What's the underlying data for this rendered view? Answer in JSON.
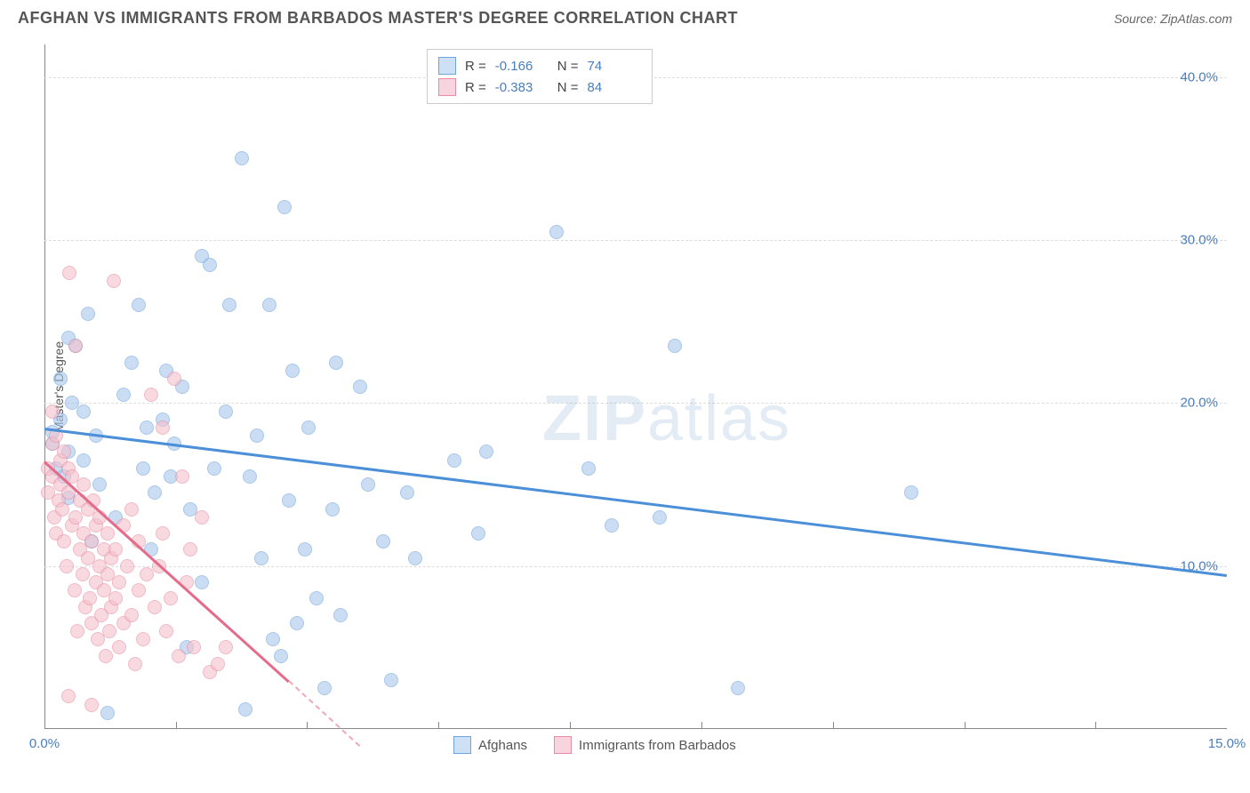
{
  "header": {
    "title": "AFGHAN VS IMMIGRANTS FROM BARBADOS MASTER'S DEGREE CORRELATION CHART",
    "source": "Source: ZipAtlas.com"
  },
  "watermark": {
    "prefix": "ZIP",
    "suffix": "atlas"
  },
  "chart": {
    "type": "scatter",
    "ylabel": "Master's Degree",
    "xlim": [
      0,
      15
    ],
    "ylim": [
      0,
      42
    ],
    "y_ticks": [
      {
        "v": 10,
        "label": "10.0%"
      },
      {
        "v": 20,
        "label": "20.0%"
      },
      {
        "v": 30,
        "label": "30.0%"
      },
      {
        "v": 40,
        "label": "40.0%"
      }
    ],
    "x_ticks": [
      {
        "v": 0,
        "label": "0.0%"
      },
      {
        "v": 15,
        "label": "15.0%"
      }
    ],
    "x_minor_ticks": [
      1.67,
      3.33,
      5,
      6.67,
      8.33,
      10,
      11.67,
      13.33
    ],
    "grid_color": "#dddddd",
    "background_color": "#ffffff",
    "series": [
      {
        "name": "Afghans",
        "color_fill": "#a8c8ec",
        "color_stroke": "#6fa3de",
        "trend_color": "#4a8fd8",
        "R": "-0.166",
        "N": "74",
        "trend": {
          "x1": 0,
          "y1": 18.5,
          "x2": 15,
          "y2": 9.5
        },
        "points": [
          [
            0.1,
            17.5
          ],
          [
            0.1,
            18.2
          ],
          [
            0.15,
            16.0
          ],
          [
            0.2,
            19.0
          ],
          [
            0.2,
            21.5
          ],
          [
            0.25,
            15.5
          ],
          [
            0.3,
            14.2
          ],
          [
            0.3,
            17.0
          ],
          [
            0.35,
            20.0
          ],
          [
            0.4,
            23.5
          ],
          [
            0.5,
            19.5
          ],
          [
            0.5,
            16.5
          ],
          [
            0.55,
            25.5
          ],
          [
            0.6,
            11.5
          ],
          [
            0.65,
            18.0
          ],
          [
            0.7,
            15.0
          ],
          [
            0.9,
            13.0
          ],
          [
            1.0,
            20.5
          ],
          [
            1.1,
            22.5
          ],
          [
            1.2,
            26.0
          ],
          [
            1.25,
            16.0
          ],
          [
            1.3,
            18.5
          ],
          [
            1.35,
            11.0
          ],
          [
            1.4,
            14.5
          ],
          [
            1.5,
            19.0
          ],
          [
            1.55,
            22.0
          ],
          [
            1.6,
            15.5
          ],
          [
            1.65,
            17.5
          ],
          [
            1.75,
            21.0
          ],
          [
            1.85,
            13.5
          ],
          [
            2.0,
            29.0
          ],
          [
            2.1,
            28.5
          ],
          [
            2.15,
            16.0
          ],
          [
            2.3,
            19.5
          ],
          [
            2.35,
            26.0
          ],
          [
            2.5,
            35.0
          ],
          [
            2.6,
            15.5
          ],
          [
            2.7,
            18.0
          ],
          [
            2.75,
            10.5
          ],
          [
            2.85,
            26.0
          ],
          [
            3.0,
            4.5
          ],
          [
            3.05,
            32.0
          ],
          [
            3.1,
            14.0
          ],
          [
            3.15,
            22.0
          ],
          [
            3.2,
            6.5
          ],
          [
            3.3,
            11.0
          ],
          [
            3.35,
            18.5
          ],
          [
            3.45,
            8.0
          ],
          [
            3.55,
            2.5
          ],
          [
            3.65,
            13.5
          ],
          [
            3.7,
            22.5
          ],
          [
            3.75,
            7.0
          ],
          [
            4.0,
            21.0
          ],
          [
            4.1,
            15.0
          ],
          [
            4.3,
            11.5
          ],
          [
            4.4,
            3.0
          ],
          [
            4.6,
            14.5
          ],
          [
            4.7,
            10.5
          ],
          [
            5.2,
            16.5
          ],
          [
            5.5,
            12.0
          ],
          [
            5.6,
            17.0
          ],
          [
            6.5,
            30.5
          ],
          [
            6.9,
            16.0
          ],
          [
            7.2,
            12.5
          ],
          [
            7.8,
            13.0
          ],
          [
            8.0,
            23.5
          ],
          [
            8.8,
            2.5
          ],
          [
            11.0,
            14.5
          ],
          [
            0.8,
            1.0
          ],
          [
            2.55,
            1.2
          ],
          [
            1.8,
            5.0
          ],
          [
            2.9,
            5.5
          ],
          [
            2.0,
            9.0
          ],
          [
            0.3,
            24.0
          ]
        ]
      },
      {
        "name": "Immigrants from Barbados",
        "color_fill": "#f5c1cd",
        "color_stroke": "#e88ba3",
        "trend_color": "#e56b8a",
        "R": "-0.383",
        "N": "84",
        "trend": {
          "x1": 0,
          "y1": 16.5,
          "x2": 3.1,
          "y2": 3.0
        },
        "trend_dash": {
          "x1": 3.1,
          "y1": 3.0,
          "x2": 4.0,
          "y2": -1.0
        },
        "points": [
          [
            0.05,
            16.0
          ],
          [
            0.05,
            14.5
          ],
          [
            0.1,
            15.5
          ],
          [
            0.1,
            17.5
          ],
          [
            0.1,
            19.5
          ],
          [
            0.12,
            13.0
          ],
          [
            0.15,
            12.0
          ],
          [
            0.15,
            18.0
          ],
          [
            0.18,
            14.0
          ],
          [
            0.2,
            16.5
          ],
          [
            0.2,
            15.0
          ],
          [
            0.22,
            13.5
          ],
          [
            0.25,
            11.5
          ],
          [
            0.25,
            17.0
          ],
          [
            0.28,
            10.0
          ],
          [
            0.3,
            14.5
          ],
          [
            0.3,
            16.0
          ],
          [
            0.32,
            28.0
          ],
          [
            0.35,
            12.5
          ],
          [
            0.35,
            15.5
          ],
          [
            0.38,
            8.5
          ],
          [
            0.4,
            13.0
          ],
          [
            0.4,
            23.5
          ],
          [
            0.42,
            6.0
          ],
          [
            0.45,
            11.0
          ],
          [
            0.45,
            14.0
          ],
          [
            0.48,
            9.5
          ],
          [
            0.5,
            12.0
          ],
          [
            0.5,
            15.0
          ],
          [
            0.52,
            7.5
          ],
          [
            0.55,
            10.5
          ],
          [
            0.55,
            13.5
          ],
          [
            0.58,
            8.0
          ],
          [
            0.6,
            11.5
          ],
          [
            0.6,
            6.5
          ],
          [
            0.62,
            14.0
          ],
          [
            0.65,
            9.0
          ],
          [
            0.65,
            12.5
          ],
          [
            0.68,
            5.5
          ],
          [
            0.7,
            10.0
          ],
          [
            0.7,
            13.0
          ],
          [
            0.72,
            7.0
          ],
          [
            0.75,
            11.0
          ],
          [
            0.75,
            8.5
          ],
          [
            0.78,
            4.5
          ],
          [
            0.8,
            9.5
          ],
          [
            0.8,
            12.0
          ],
          [
            0.82,
            6.0
          ],
          [
            0.85,
            10.5
          ],
          [
            0.85,
            7.5
          ],
          [
            0.88,
            27.5
          ],
          [
            0.9,
            8.0
          ],
          [
            0.9,
            11.0
          ],
          [
            0.95,
            5.0
          ],
          [
            0.95,
            9.0
          ],
          [
            1.0,
            12.5
          ],
          [
            1.0,
            6.5
          ],
          [
            1.05,
            10.0
          ],
          [
            1.1,
            7.0
          ],
          [
            1.1,
            13.5
          ],
          [
            1.15,
            4.0
          ],
          [
            1.2,
            8.5
          ],
          [
            1.2,
            11.5
          ],
          [
            1.25,
            5.5
          ],
          [
            1.3,
            9.5
          ],
          [
            1.35,
            20.5
          ],
          [
            1.4,
            7.5
          ],
          [
            1.45,
            10.0
          ],
          [
            1.5,
            12.0
          ],
          [
            1.5,
            18.5
          ],
          [
            1.55,
            6.0
          ],
          [
            1.6,
            8.0
          ],
          [
            1.65,
            21.5
          ],
          [
            1.7,
            4.5
          ],
          [
            1.75,
            15.5
          ],
          [
            1.8,
            9.0
          ],
          [
            1.85,
            11.0
          ],
          [
            1.9,
            5.0
          ],
          [
            2.0,
            13.0
          ],
          [
            2.1,
            3.5
          ],
          [
            2.2,
            4.0
          ],
          [
            2.3,
            5.0
          ],
          [
            0.3,
            2.0
          ],
          [
            0.6,
            1.5
          ]
        ]
      }
    ],
    "legend_labels": {
      "series1": "Afghans",
      "series2": "Immigrants from Barbados",
      "R_label": "R =",
      "N_label": "N ="
    }
  }
}
